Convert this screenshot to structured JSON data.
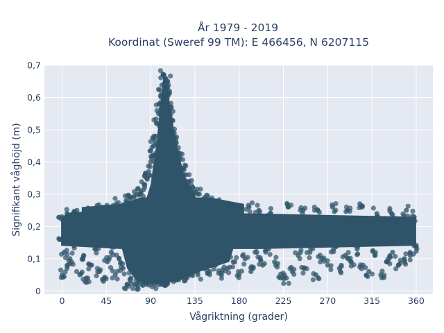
{
  "chart_data": {
    "type": "scatter",
    "title": "År 1979 - 2019",
    "subtitle": "Koordinat (Sweref 99 TM): E 466456, N 6207115",
    "xlabel": "Vågriktning (grader)",
    "ylabel": "Signifikant våghöjd (m)",
    "xlim": [
      -18,
      377
    ],
    "ylim": [
      -0.01,
      0.7
    ],
    "x_ticks": [
      0,
      45,
      90,
      135,
      180,
      225,
      270,
      315,
      360
    ],
    "y_ticks": [
      0,
      0.1,
      0.2,
      0.3,
      0.4,
      0.5,
      0.6,
      0.7
    ],
    "x_tick_labels": [
      "0",
      "45",
      "90",
      "135",
      "180",
      "225",
      "270",
      "315",
      "360"
    ],
    "y_tick_labels": [
      "0",
      "0,1",
      "0,2",
      "0,3",
      "0,4",
      "0,5",
      "0,6",
      "0,7"
    ],
    "grid": true,
    "marker_color": "#2f5469",
    "background_color": "#e5e9f2",
    "series": [
      {
        "points": [
          [
            103,
            0.67
          ],
          [
            105,
            0.66
          ],
          [
            107,
            0.65
          ],
          [
            104,
            0.64
          ],
          [
            109,
            0.62
          ],
          [
            101,
            0.61
          ],
          [
            106,
            0.6
          ],
          [
            99,
            0.58
          ],
          [
            111,
            0.57
          ],
          [
            98,
            0.55
          ],
          [
            102,
            0.55
          ],
          [
            112,
            0.53
          ],
          [
            96,
            0.52
          ],
          [
            108,
            0.51
          ],
          [
            114,
            0.49
          ],
          [
            95,
            0.48
          ],
          [
            100,
            0.47
          ],
          [
            116,
            0.46
          ],
          [
            93,
            0.45
          ],
          [
            118,
            0.43
          ],
          [
            92,
            0.42
          ],
          [
            120,
            0.41
          ],
          [
            90,
            0.4
          ],
          [
            123,
            0.38
          ],
          [
            88,
            0.37
          ],
          [
            126,
            0.36
          ],
          [
            86,
            0.35
          ],
          [
            129,
            0.34
          ],
          [
            84,
            0.33
          ],
          [
            133,
            0.32
          ],
          [
            80,
            0.31
          ],
          [
            138,
            0.3
          ],
          [
            76,
            0.3
          ],
          [
            145,
            0.29
          ],
          [
            70,
            0.29
          ],
          [
            150,
            0.28
          ],
          [
            65,
            0.28
          ],
          [
            160,
            0.27
          ],
          [
            55,
            0.27
          ],
          [
            170,
            0.26
          ],
          [
            45,
            0.26
          ],
          [
            190,
            0.26
          ],
          [
            35,
            0.25
          ],
          [
            200,
            0.25
          ],
          [
            25,
            0.25
          ],
          [
            212,
            0.24
          ],
          [
            15,
            0.25
          ],
          [
            230,
            0.26
          ],
          [
            5,
            0.24
          ],
          [
            245,
            0.25
          ],
          [
            0,
            0.23
          ],
          [
            260,
            0.25
          ],
          [
            275,
            0.26
          ],
          [
            290,
            0.25
          ],
          [
            305,
            0.26
          ],
          [
            320,
            0.24
          ],
          [
            335,
            0.24
          ],
          [
            350,
            0.25
          ],
          [
            358,
            0.23
          ],
          [
            0,
            0.16
          ],
          [
            2,
            0.12
          ],
          [
            5,
            0.07
          ],
          [
            0,
            0.05
          ],
          [
            8,
            0.1
          ],
          [
            12,
            0.14
          ],
          [
            18,
            0.05
          ],
          [
            22,
            0.11
          ],
          [
            26,
            0.04
          ],
          [
            30,
            0.08
          ],
          [
            34,
            0.13
          ],
          [
            38,
            0.06
          ],
          [
            42,
            0.03
          ],
          [
            46,
            0.09
          ],
          [
            50,
            0.12
          ],
          [
            54,
            0.05
          ],
          [
            58,
            0.1
          ],
          [
            62,
            0.07
          ],
          [
            66,
            0.02
          ],
          [
            70,
            0.04
          ],
          [
            74,
            0.02
          ],
          [
            78,
            0.03
          ],
          [
            82,
            0.02
          ],
          [
            86,
            0.02
          ],
          [
            90,
            0.03
          ],
          [
            94,
            0.02
          ],
          [
            98,
            0.03
          ],
          [
            102,
            0.02
          ],
          [
            106,
            0.03
          ],
          [
            110,
            0.04
          ],
          [
            114,
            0.05
          ],
          [
            120,
            0.05
          ],
          [
            126,
            0.04
          ],
          [
            132,
            0.06
          ],
          [
            138,
            0.05
          ],
          [
            144,
            0.07
          ],
          [
            150,
            0.06
          ],
          [
            156,
            0.08
          ],
          [
            162,
            0.05
          ],
          [
            168,
            0.07
          ],
          [
            174,
            0.09
          ],
          [
            180,
            0.05
          ],
          [
            186,
            0.1
          ],
          [
            192,
            0.06
          ],
          [
            198,
            0.12
          ],
          [
            204,
            0.08
          ],
          [
            210,
            0.13
          ],
          [
            216,
            0.09
          ],
          [
            222,
            0.04
          ],
          [
            228,
            0.04
          ],
          [
            234,
            0.06
          ],
          [
            240,
            0.11
          ],
          [
            246,
            0.07
          ],
          [
            252,
            0.12
          ],
          [
            258,
            0.05
          ],
          [
            264,
            0.1
          ],
          [
            270,
            0.08
          ],
          [
            276,
            0.13
          ],
          [
            282,
            0.07
          ],
          [
            288,
            0.11
          ],
          [
            294,
            0.09
          ],
          [
            300,
            0.13
          ],
          [
            306,
            0.08
          ],
          [
            312,
            0.06
          ],
          [
            318,
            0.11
          ],
          [
            324,
            0.05
          ],
          [
            330,
            0.09
          ],
          [
            336,
            0.12
          ],
          [
            342,
            0.08
          ],
          [
            348,
            0.1
          ],
          [
            354,
            0.11
          ],
          [
            358,
            0.14
          ]
        ]
      }
    ]
  }
}
